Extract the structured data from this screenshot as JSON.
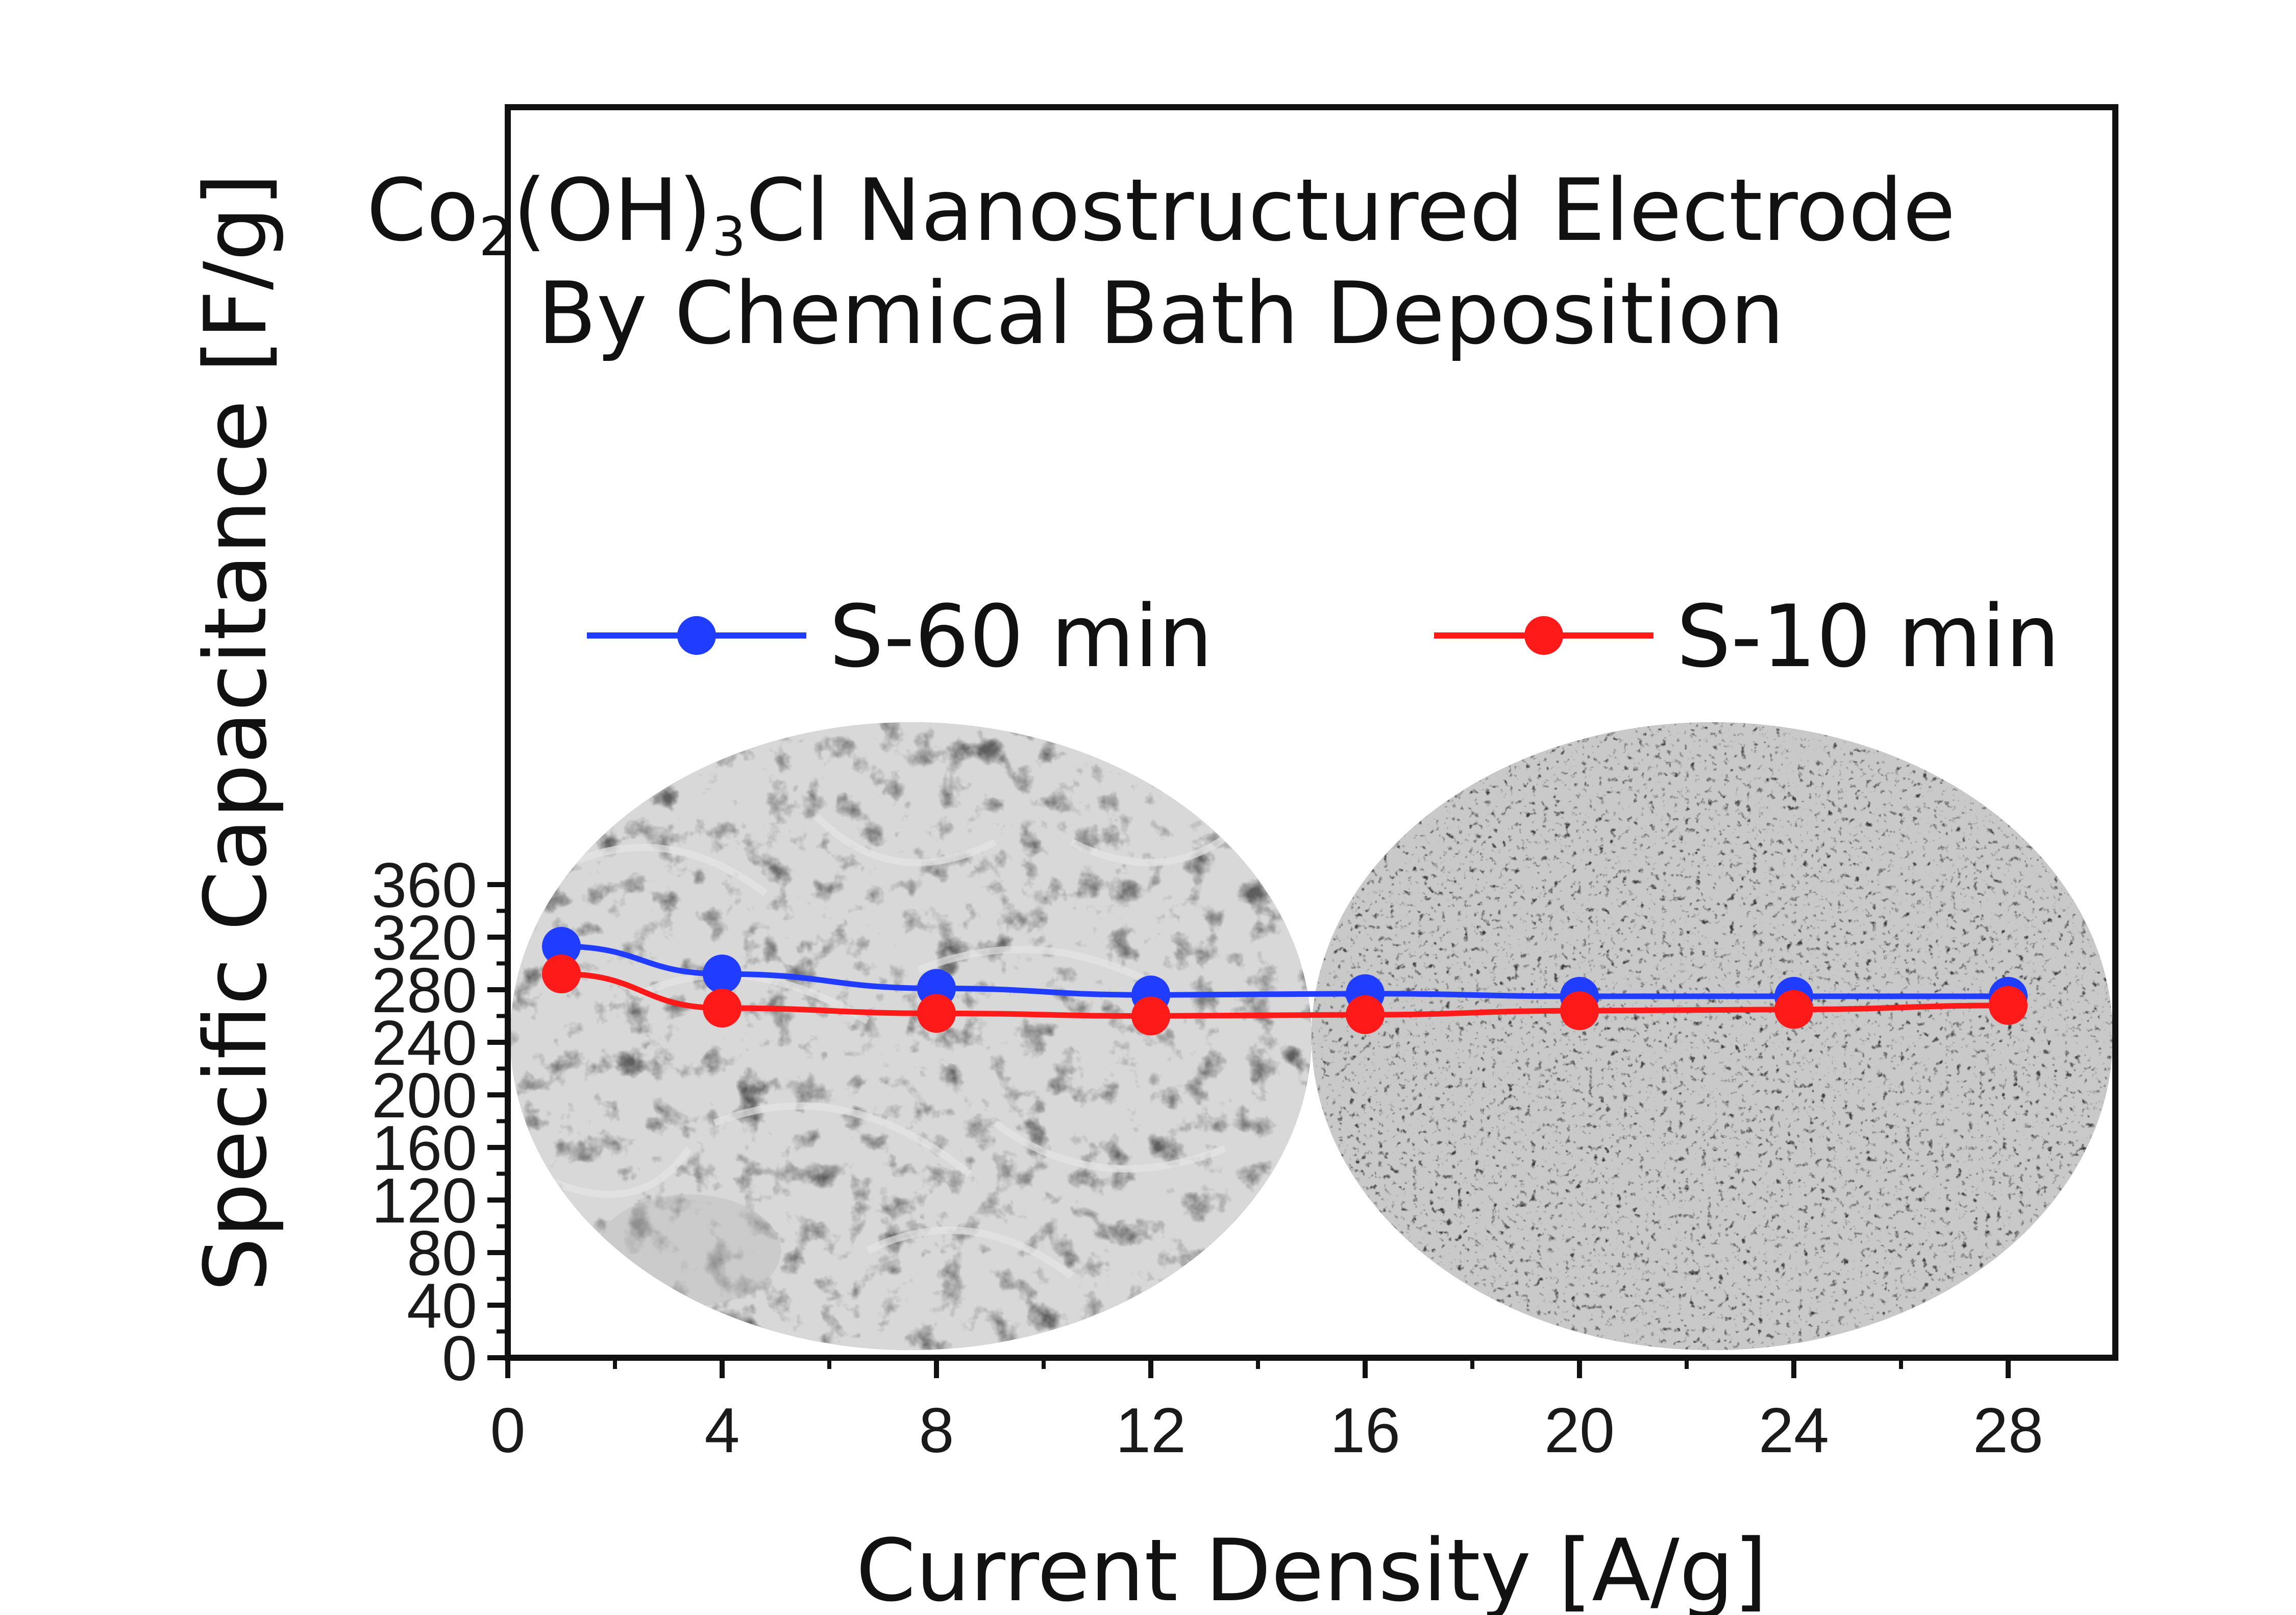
{
  "chart_data": {
    "type": "line",
    "title_parts": [
      "Co",
      "2",
      "(OH)",
      "3",
      "Cl Nanostructured Electrode"
    ],
    "subtitle": "By Chemical Bath Deposition",
    "xlabel": "Current Density [A/g]",
    "ylabel": "Specific Capacitance [F/g]",
    "xlim": [
      0,
      30
    ],
    "ylim": [
      0,
      380
    ],
    "xticks": [
      0,
      4,
      8,
      12,
      16,
      20,
      24,
      28
    ],
    "yticks": [
      0,
      40,
      80,
      120,
      160,
      200,
      240,
      280,
      320,
      360
    ],
    "x": [
      1,
      4,
      8,
      12,
      16,
      20,
      24,
      28
    ],
    "series": [
      {
        "name": "S-60 min",
        "color": "#1f3cff",
        "values": [
          313,
          292,
          281,
          276,
          277,
          275,
          275,
          275
        ]
      },
      {
        "name": "S-10 min",
        "color": "#ff1a1a",
        "values": [
          292,
          266,
          262,
          260,
          261,
          264,
          265,
          268
        ]
      }
    ],
    "legend_position": "upper-middle",
    "grid": false,
    "inset_images": [
      "sem-micrograph-nanowires",
      "sem-micrograph-particles"
    ]
  }
}
